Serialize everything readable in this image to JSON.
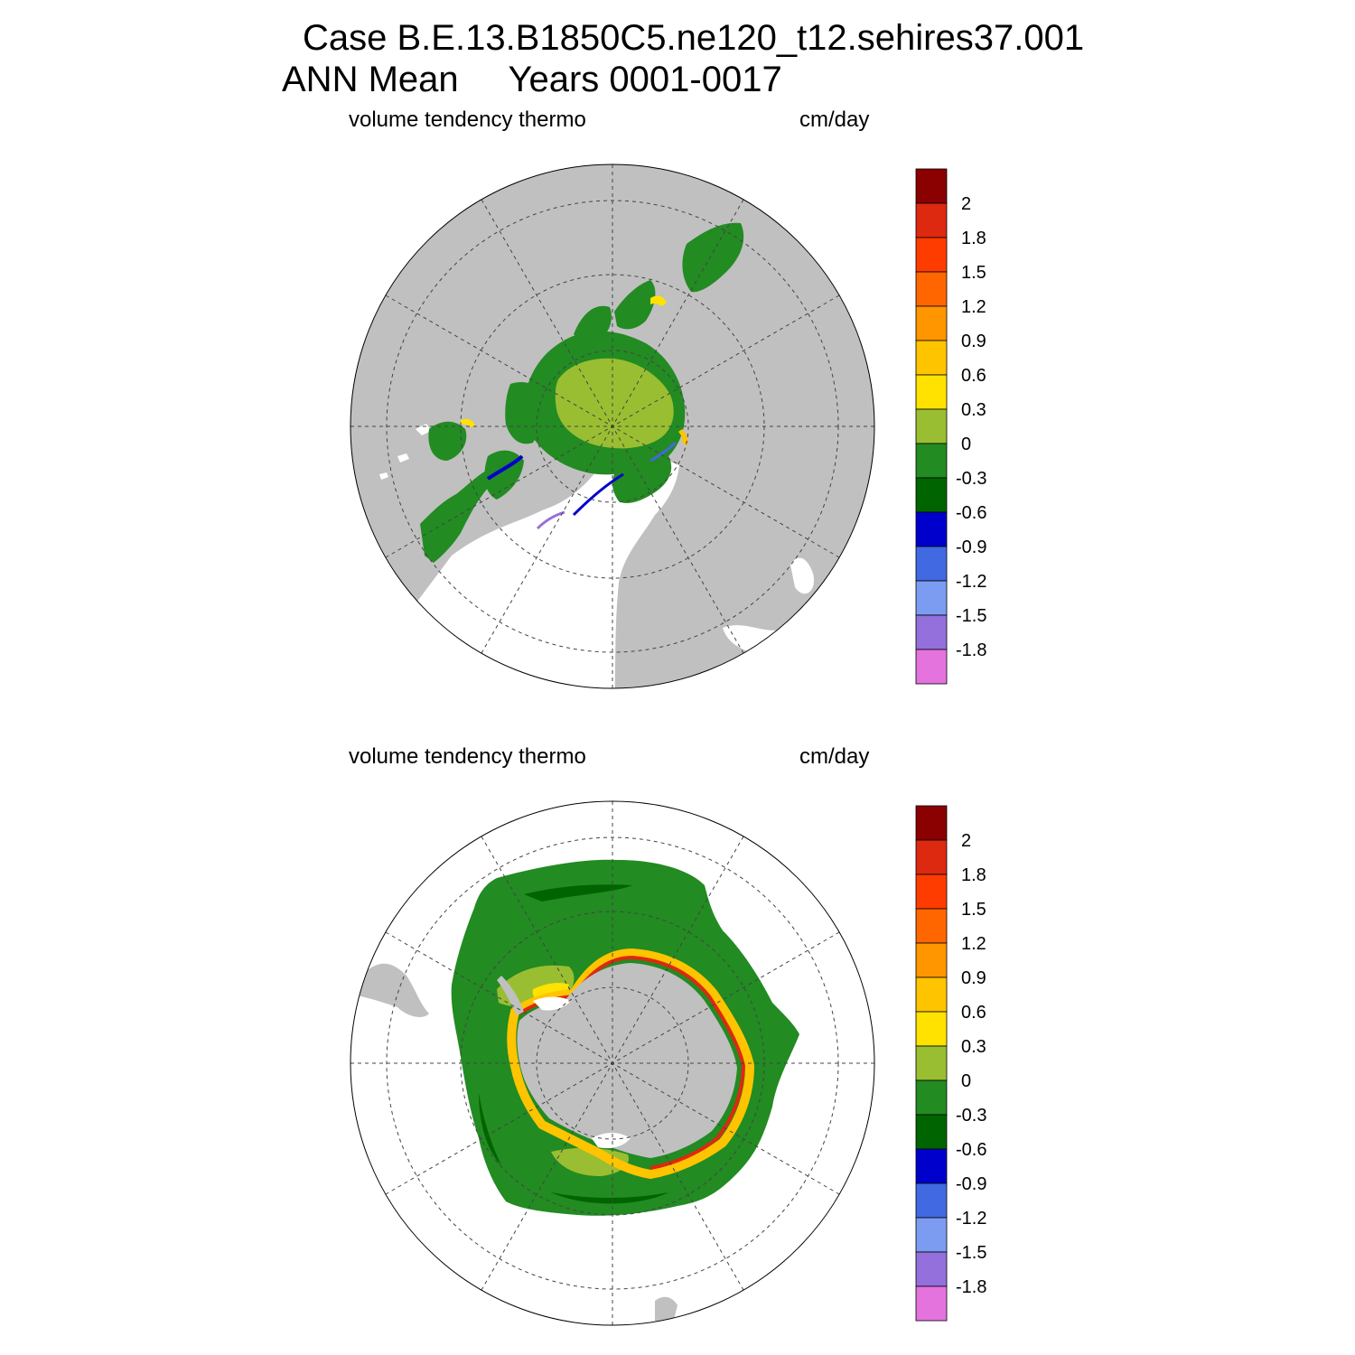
{
  "title": {
    "line1": "Case B.E.13.B1850C5.ne120_t12.sehires37.001",
    "line2": "ANN Mean     Years 0001-0017"
  },
  "colors": {
    "land": "#c0c0c0",
    "ocean": "#ffffff",
    "grid": "#444444"
  },
  "colorbar": {
    "colors": [
      "#8b0000",
      "#dc2910",
      "#ff3c00",
      "#ff6600",
      "#ff9600",
      "#ffc400",
      "#ffe200",
      "#9abe31",
      "#228b22",
      "#006400",
      "#0000cd",
      "#4169e1",
      "#7b9cf0",
      "#9370db",
      "#e473de"
    ],
    "labels": [
      "2",
      "1.8",
      "1.5",
      "1.2",
      "0.9",
      "0.6",
      "0.3",
      "0",
      "-0.3",
      "-0.6",
      "-0.9",
      "-1.2",
      "-1.5",
      "-1.8"
    ]
  },
  "panels": [
    {
      "id": "north",
      "left_label": "volume tendency thermo",
      "right_label": "cm/day"
    },
    {
      "id": "south",
      "left_label": "volume tendency thermo",
      "right_label": "cm/day"
    }
  ]
}
